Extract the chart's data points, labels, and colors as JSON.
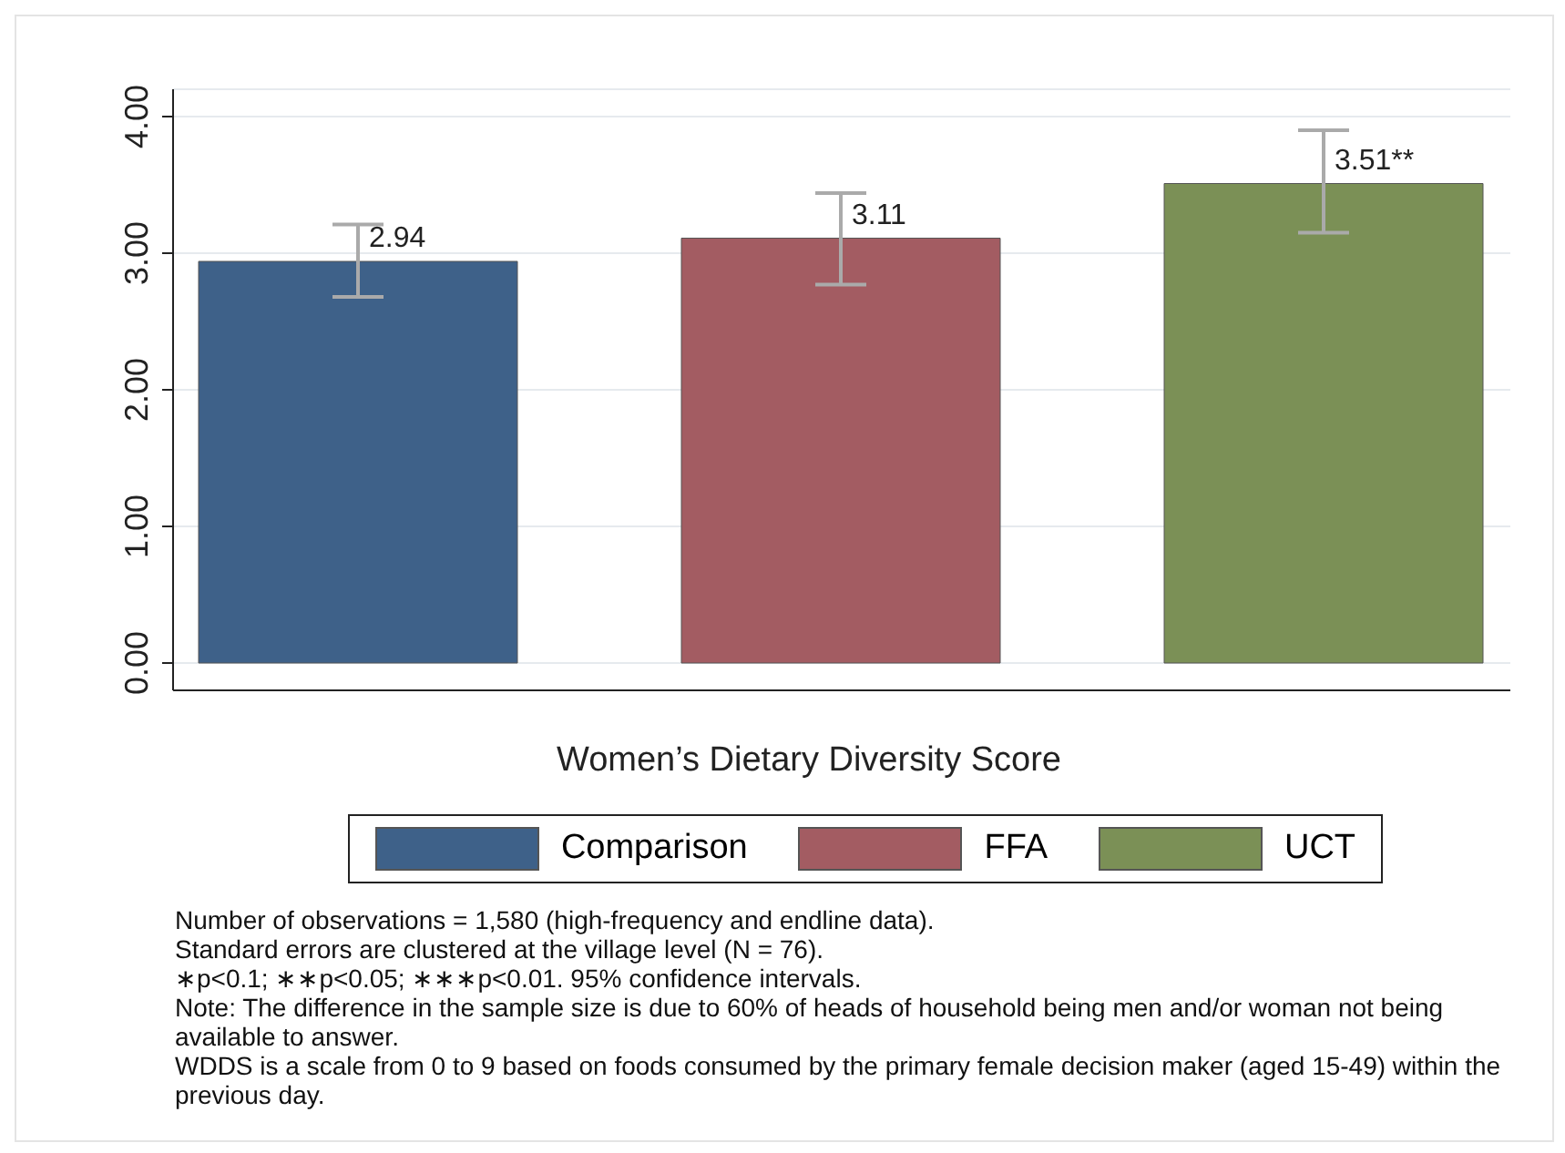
{
  "chart_data": {
    "type": "bar",
    "xlabel": "Women’s Dietary Diversity Score",
    "categories": [
      null
    ],
    "series": [
      {
        "name": "Comparison",
        "color": "#3e6189",
        "values": [
          2.94
        ],
        "errors": [
          [
            2.68,
            3.21
          ]
        ],
        "value_labels": [
          "2.94"
        ]
      },
      {
        "name": "FFA",
        "color": "#a35c62",
        "values": [
          3.11
        ],
        "errors": [
          [
            2.77,
            3.44
          ]
        ],
        "value_labels": [
          "3.11"
        ]
      },
      {
        "name": "UCT",
        "color": "#7b9056",
        "values": [
          3.51
        ],
        "errors": [
          [
            3.15,
            3.9
          ]
        ],
        "value_labels": [
          "3.51**"
        ]
      }
    ],
    "ylim": [
      -0.2,
      4.2
    ],
    "yticks": [
      {
        "value": 0,
        "label": "0.00"
      },
      {
        "value": 1,
        "label": "1.00"
      },
      {
        "value": 2,
        "label": "2.00"
      },
      {
        "value": 3,
        "label": "3.00"
      },
      {
        "value": 4,
        "label": "4.00"
      }
    ],
    "grid": "y",
    "legend": "bottom",
    "annotations": [
      "Number of observations = 1,580 (high-frequency and endline data).",
      "Standard errors are clustered at the village level (N = 76).",
      "∗p<0.1; ∗∗p<0.05; ∗∗∗p<0.01. 95% confidence intervals.",
      "Note: The difference in the sample size is due to 60% of heads of household being men and/or woman not being available to answer.",
      "WDDS is a scale from 0 to 9 based on foods consumed by the primary female decision maker (aged 15-49) within the previous day."
    ]
  }
}
